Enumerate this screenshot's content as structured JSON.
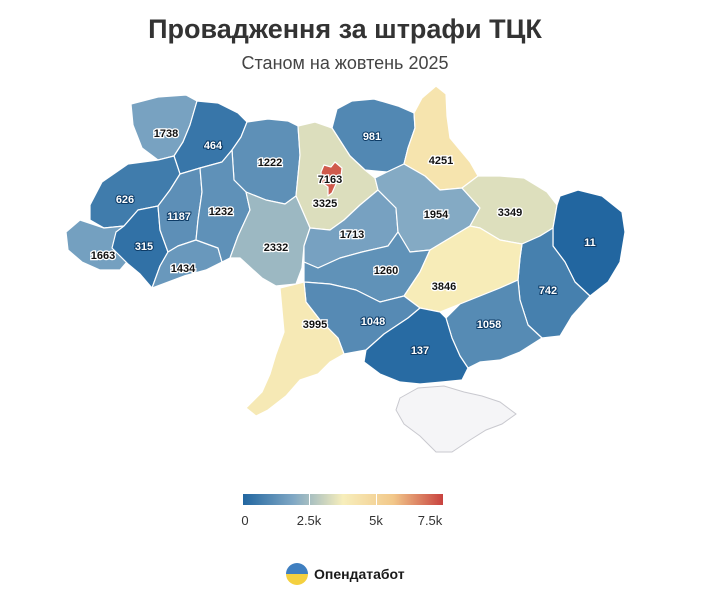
{
  "title": "Провадження за штрафи ТЦК",
  "subtitle": "Станом на жовтень 2025",
  "legend": {
    "ticks": [
      "0",
      "2.5k",
      "5k",
      "7.5k"
    ],
    "stops": [
      "#2166a0",
      "#7fa7c4",
      "#f7eebb",
      "#f2c88a",
      "#c8423f"
    ]
  },
  "brand": {
    "name": "Опендатабот",
    "icon": "opendatabot-logo"
  },
  "map_data": {
    "regions": [
      {
        "id": "volyn",
        "value": 1738
      },
      {
        "id": "rivne",
        "value": 464
      },
      {
        "id": "zhytomyr",
        "value": 1222
      },
      {
        "id": "kyiv-oblast",
        "value": 3325
      },
      {
        "id": "kyiv-city",
        "value": 7163
      },
      {
        "id": "chernihiv",
        "value": 981
      },
      {
        "id": "sumy",
        "value": 4251
      },
      {
        "id": "lviv",
        "value": 626
      },
      {
        "id": "ternopil",
        "value": 1187
      },
      {
        "id": "khmelnytskyi",
        "value": 1232
      },
      {
        "id": "vinnytsia",
        "value": 2332
      },
      {
        "id": "cherkasy",
        "value": 1713
      },
      {
        "id": "poltava",
        "value": 1954
      },
      {
        "id": "kharkiv",
        "value": 3349
      },
      {
        "id": "luhansk",
        "value": 11
      },
      {
        "id": "zakarpattia",
        "value": 1663
      },
      {
        "id": "ivano-frankivsk",
        "value": 315
      },
      {
        "id": "chernivtsi",
        "value": 1434
      },
      {
        "id": "kirovohrad",
        "value": 1260
      },
      {
        "id": "dnipropetrovsk",
        "value": 3846
      },
      {
        "id": "donetsk",
        "value": 742
      },
      {
        "id": "odesa",
        "value": 3995
      },
      {
        "id": "mykolaiv",
        "value": 1048
      },
      {
        "id": "zaporizhzhia",
        "value": 1058
      },
      {
        "id": "kherson",
        "value": 137
      },
      {
        "id": "crimea",
        "value": null
      }
    ]
  }
}
